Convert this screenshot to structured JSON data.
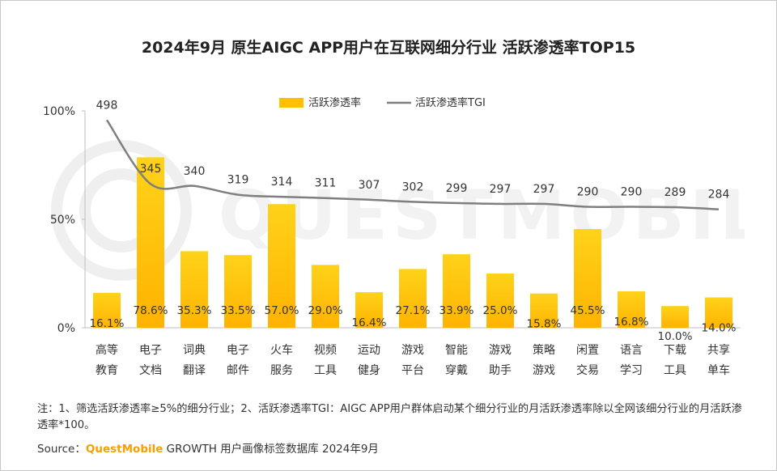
{
  "title": "2024年9月 原生AIGC APP用户在互联网细分行业 活跃渗透率TOP15",
  "chart_data": {
    "type": "bar",
    "title": "2024年9月 原生AIGC APP用户在互联网细分行业 活跃渗透率TOP15",
    "categories": [
      [
        "高等",
        "教育"
      ],
      [
        "电子",
        "文档"
      ],
      [
        "词典",
        "翻译"
      ],
      [
        "电子",
        "邮件"
      ],
      [
        "火车",
        "服务"
      ],
      [
        "视频",
        "工具"
      ],
      [
        "运动",
        "健身"
      ],
      [
        "游戏",
        "平台"
      ],
      [
        "智能",
        "穿戴"
      ],
      [
        "游戏",
        "助手"
      ],
      [
        "策略",
        "游戏"
      ],
      [
        "闲置",
        "交易"
      ],
      [
        "语言",
        "学习"
      ],
      [
        "下载",
        "工具"
      ],
      [
        "共享",
        "单车"
      ]
    ],
    "series": [
      {
        "name": "活跃渗透率",
        "type": "bar",
        "color": "#FFC000",
        "values": [
          16.1,
          78.6,
          35.3,
          33.5,
          57.0,
          29.0,
          16.4,
          27.1,
          33.9,
          25.0,
          15.8,
          45.5,
          16.8,
          10.0,
          14.0
        ],
        "labels": [
          "16.1%",
          "78.6%",
          "35.3%",
          "33.5%",
          "57.0%",
          "29.0%",
          "16.4%",
          "27.1%",
          "33.9%",
          "25.0%",
          "15.8%",
          "45.5%",
          "16.8%",
          "10.0%",
          "14.0%"
        ]
      },
      {
        "name": "活跃渗透率TGI",
        "type": "line",
        "color": "#7F7F7F",
        "values": [
          498,
          345,
          340,
          319,
          314,
          311,
          307,
          302,
          299,
          297,
          297,
          290,
          290,
          289,
          284
        ]
      }
    ],
    "y_axis": {
      "min": 0,
      "max": 100,
      "ticks": [
        0,
        50,
        100
      ],
      "tick_labels": [
        "0%",
        "50%",
        "100%"
      ]
    },
    "tgi_axis": {
      "min": 0,
      "max": 520
    },
    "legend_position": "top-center"
  },
  "watermark_text": "QUESTMOBILE",
  "note": "注：1、筛选活跃渗透率≥5%的细分行业；2、活跃渗透率TGI：AIGC APP用户群体启动某个细分行业的月活跃渗透率除以全网该细分行业的月活跃渗透率*100。",
  "source": {
    "prefix": "Source：",
    "brand": "QuestMobile",
    "suffix": " GROWTH 用户画像标签数据库 2024年9月"
  }
}
